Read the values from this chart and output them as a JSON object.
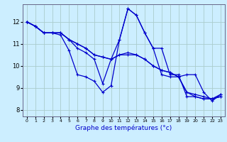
{
  "xlabel": "Graphe des températures (°c)",
  "background_color": "#cceeff",
  "grid_color": "#aacccc",
  "line_color": "#0000cc",
  "xlim": [
    -0.5,
    23.5
  ],
  "ylim": [
    7.7,
    12.8
  ],
  "yticks": [
    8,
    9,
    10,
    11,
    12
  ],
  "xticks": [
    0,
    1,
    2,
    3,
    4,
    5,
    6,
    7,
    8,
    9,
    10,
    11,
    12,
    13,
    14,
    15,
    16,
    17,
    18,
    19,
    20,
    21,
    22,
    23
  ],
  "curves": [
    [
      12.0,
      11.8,
      11.5,
      11.5,
      11.5,
      11.2,
      10.8,
      10.6,
      10.3,
      9.2,
      10.3,
      11.2,
      12.6,
      12.3,
      11.5,
      10.8,
      10.8,
      9.6,
      9.6,
      8.6,
      8.6,
      8.5,
      8.5,
      8.7
    ],
    [
      12.0,
      11.8,
      11.5,
      11.5,
      11.4,
      10.7,
      9.6,
      9.5,
      9.3,
      8.8,
      9.1,
      11.2,
      12.6,
      12.3,
      11.5,
      10.8,
      9.6,
      9.5,
      9.5,
      9.6,
      9.6,
      8.8,
      8.4,
      8.7
    ],
    [
      12.0,
      11.8,
      11.5,
      11.5,
      11.5,
      11.2,
      11.0,
      10.8,
      10.5,
      10.4,
      10.3,
      10.5,
      10.5,
      10.5,
      10.3,
      10.0,
      9.8,
      9.7,
      9.5,
      8.8,
      8.6,
      8.5,
      8.5,
      8.6
    ],
    [
      12.0,
      11.8,
      11.5,
      11.5,
      11.5,
      11.2,
      11.0,
      10.8,
      10.5,
      10.4,
      10.3,
      10.5,
      10.6,
      10.5,
      10.3,
      10.0,
      9.8,
      9.7,
      9.5,
      8.8,
      8.7,
      8.6,
      8.5,
      8.6
    ]
  ]
}
